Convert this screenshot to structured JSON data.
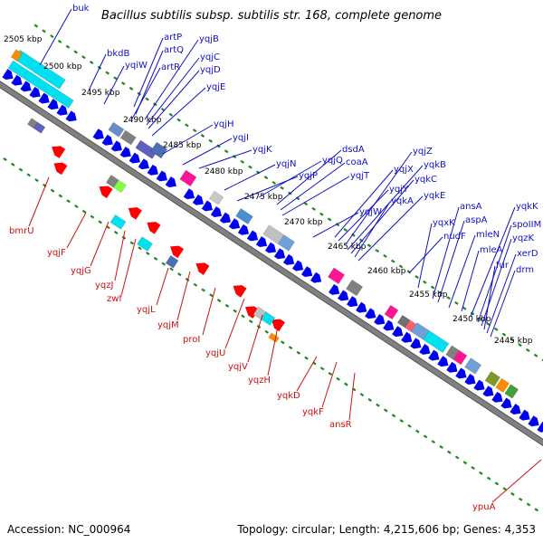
{
  "title": "Bacillus subtilis subsp. subtilis str. 168, complete genome",
  "footer": {
    "accession": "Accession: NC_000964",
    "summary": "Topology: circular; Length: 4,215,606 bp; Genes: 4,353"
  },
  "colors": {
    "forward_label": "#1010c8",
    "reverse_label": "#d01010",
    "backbone": "#808080",
    "tick": "#1a8a1a",
    "cyan": "#00e0f0",
    "blue_arrow": "#0000f0",
    "red_arrow": "#ff0000"
  },
  "scale_labels": [
    "2505 kbp",
    "2500 kbp",
    "2495 kbp",
    "2490 kbp",
    "2485 kbp",
    "2480 kbp",
    "2475 kbp",
    "2470 kbp",
    "2465 kbp",
    "2460 kbp",
    "2455 kbp",
    "2450 kbp",
    "2445 kbp"
  ],
  "forward_genes": [
    "buk",
    "bkdB",
    "yqiW",
    "artP",
    "artQ",
    "artR",
    "yqjB",
    "yqjC",
    "yqjD",
    "yqjE",
    "yqjH",
    "yqjI",
    "yqjK",
    "yqjN",
    "yqjP",
    "yqjQ",
    "dsdA",
    "coaA",
    "yqjT",
    "yqjW",
    "yqjX",
    "yqjY",
    "yqjZ",
    "yqkB",
    "yqkC",
    "yqkA",
    "yqkE",
    "nudF",
    "yqxK",
    "ansA",
    "aspA",
    "mleN",
    "mleA",
    "yqkK",
    "spoIIM",
    "yqzK",
    "fur",
    "xerD",
    "drm"
  ],
  "reverse_genes": [
    "bmrU",
    "yqjF",
    "yqjG",
    "yqzJ",
    "zwf",
    "yqjL",
    "yqjM",
    "proI",
    "yqjU",
    "yqjV",
    "yqzH",
    "yqkD",
    "yqkF",
    "ansR",
    "ypuA"
  ]
}
